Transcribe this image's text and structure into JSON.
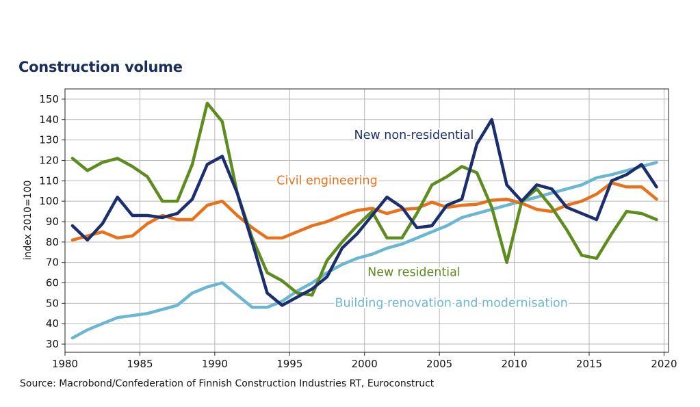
{
  "chart_data": {
    "type": "line",
    "title": "Construction volume",
    "ylabel": "index 2010=100",
    "xlabel": "",
    "xlim": [
      1980,
      2020
    ],
    "ylim": [
      30,
      150
    ],
    "xticks": [
      1980,
      1985,
      1990,
      1995,
      2000,
      2005,
      2010,
      2015,
      2020
    ],
    "yticks": [
      30,
      40,
      50,
      60,
      70,
      80,
      90,
      100,
      110,
      120,
      130,
      140,
      150
    ],
    "grid": true,
    "legend": "direct-labels",
    "source": "Source: Macrobond/Confederation of Finnish Construction Industries RT, Euroconstruct",
    "x": [
      1980.5,
      1981.5,
      1982.5,
      1983.5,
      1984.5,
      1985.5,
      1986.5,
      1987.5,
      1988.5,
      1989.5,
      1990.5,
      1991.5,
      1992.5,
      1993.5,
      1994.5,
      1995.5,
      1996.5,
      1997.5,
      1998.5,
      1999.5,
      2000.5,
      2001.5,
      2002.5,
      2003.5,
      2004.5,
      2005.5,
      2006.5,
      2007.5,
      2008.5,
      2009.5,
      2010.5,
      2011.5,
      2012.5,
      2013.5,
      2014.5,
      2015.5,
      2016.5,
      2017.5,
      2018.5,
      2019.5
    ],
    "series": [
      {
        "name": "New non-residential",
        "color": "#1b2f6e",
        "values": [
          88,
          81,
          89,
          102,
          93,
          93,
          92,
          94,
          101,
          118,
          122,
          104,
          80,
          55,
          49,
          53,
          57,
          63,
          77,
          84,
          93,
          102,
          97,
          87,
          88,
          98,
          101,
          128,
          140,
          108,
          100,
          108,
          106,
          97,
          94,
          91,
          110,
          113,
          118,
          107
        ]
      },
      {
        "name": "Civil engineering",
        "color": "#e8711c",
        "values": [
          81,
          83,
          85,
          82,
          83,
          89,
          93,
          91,
          91,
          98,
          100,
          93,
          87,
          82,
          82,
          85,
          88,
          90,
          93,
          95.5,
          96.5,
          94,
          96,
          96.5,
          99.5,
          97,
          98,
          98.5,
          100.5,
          101,
          99,
          96,
          95,
          98,
          100,
          103.5,
          109,
          107,
          107,
          101
        ]
      },
      {
        "name": "New residential",
        "color": "#5f8c1e",
        "values": [
          121,
          115,
          119,
          121,
          117,
          112,
          100,
          100,
          118,
          148,
          139,
          104,
          82,
          65,
          61,
          55,
          54,
          71,
          80,
          88,
          95,
          82,
          82,
          94,
          108,
          112,
          117,
          114,
          97,
          70,
          100,
          106,
          97,
          86,
          73.5,
          72,
          84,
          95,
          94,
          91
        ]
      },
      {
        "name": "Building renovation and modernisation",
        "color": "#6bb6d0",
        "values": [
          33,
          37,
          40,
          43,
          44,
          45,
          47,
          49,
          55,
          58,
          60,
          54,
          48,
          48,
          51,
          56,
          60,
          65,
          69,
          72,
          74,
          77,
          79,
          82,
          85,
          88,
          92,
          94,
          96,
          98,
          100,
          102,
          104,
          106,
          108,
          111.5,
          113,
          115,
          117,
          119
        ]
      }
    ],
    "annotations": [
      {
        "text": "New non-residential",
        "x": 2003.3,
        "y": 130.5
      },
      {
        "text": "Civil engineering",
        "x": 1997.5,
        "y": 108.3
      },
      {
        "text": "New residential",
        "x": 2003.3,
        "y": 63.3
      },
      {
        "text": "Building renovation and modernisation",
        "x": 2005.8,
        "y": 48.3
      }
    ]
  }
}
